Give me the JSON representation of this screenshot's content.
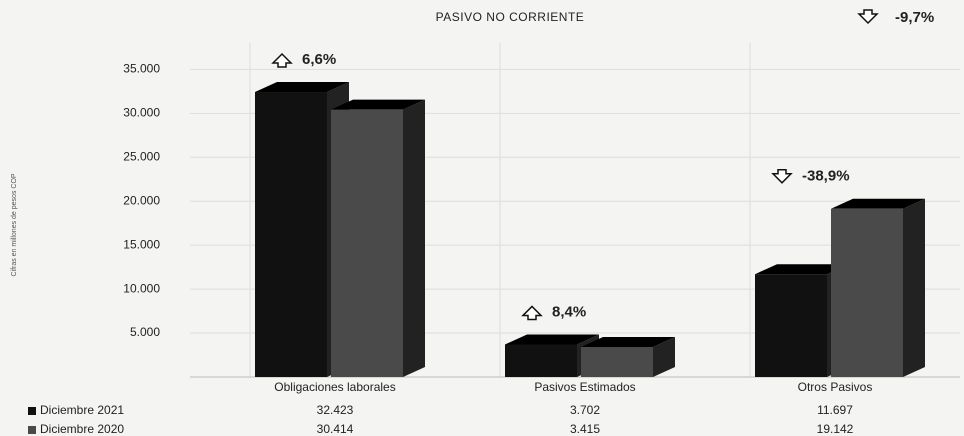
{
  "chart_data": {
    "type": "bar3d",
    "title": "PASIVO NO CORRIENTE",
    "y_axis_label": "Cifras en millones de pesos COP",
    "total_change": {
      "text": "-9,7%",
      "direction": "down"
    },
    "categories": [
      "Obligaciones laborales",
      "Pasivos Estimados",
      "Otros Pasivos"
    ],
    "series": [
      {
        "name": "Diciembre 2021",
        "color": "#111111",
        "values": [
          32423,
          3702,
          11697
        ],
        "value_labels": [
          "32.423",
          "3.702",
          "11.697"
        ]
      },
      {
        "name": "Diciembre 2020",
        "color": "#4a4a4a",
        "values": [
          30414,
          3415,
          19142
        ],
        "value_labels": [
          "30.414",
          "3.415",
          "19.142"
        ]
      }
    ],
    "annotations": [
      {
        "text": "6,6%",
        "direction": "up"
      },
      {
        "text": "8,4%",
        "direction": "up"
      },
      {
        "text": "-38,9%",
        "direction": "down"
      }
    ],
    "ylim": [
      0,
      38000
    ],
    "yticks": [
      {
        "value": 5000,
        "label": "5.000"
      },
      {
        "value": 10000,
        "label": "10.000"
      },
      {
        "value": 15000,
        "label": "15.000"
      },
      {
        "value": 20000,
        "label": "20.000"
      },
      {
        "value": 25000,
        "label": "25.000"
      },
      {
        "value": 30000,
        "label": "30.000"
      },
      {
        "value": 35000,
        "label": "35.000"
      }
    ],
    "grid": true
  }
}
